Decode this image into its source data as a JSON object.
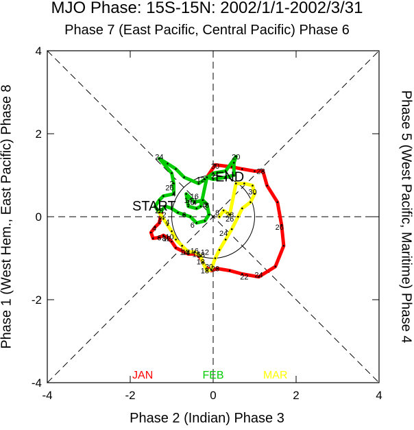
{
  "titles": {
    "main": "MJO Phase: 15S-15N: 2002/1/1-2002/3/31",
    "top": "Phase 7 (East Pacific, Central Pacific) Phase 6",
    "bottom": "Phase 2 (Indian) Phase 3",
    "left": "Phase 1 (West Hem., East Pacific) Phase 8",
    "right": "Phase 5 (West Pacific, Maritime) Phase 4"
  },
  "chart_data": {
    "type": "line",
    "title": "MJO Phase: 15S-15N: 2002/1/1-2002/3/31",
    "xlim": [
      -4,
      4
    ],
    "ylim": [
      -4,
      4
    ],
    "x_ticks": [
      "-4",
      "-2",
      "0",
      "2",
      "4"
    ],
    "y_ticks": [
      "-4",
      "-2",
      "0",
      "2",
      "4"
    ],
    "start_label": "START",
    "end_label": "END",
    "unit_circle_radius": 1,
    "series": [
      {
        "name": "JAN",
        "color": "#ff0000",
        "points": [
          [
            -1.25,
            0.1
          ],
          [
            -1.28,
            -0.05
          ],
          [
            -1.3,
            -0.15
          ],
          [
            -1.4,
            -0.25
          ],
          [
            -1.5,
            -0.38
          ],
          [
            -1.45,
            -0.52
          ],
          [
            -1.3,
            -0.5
          ],
          [
            -1.2,
            -0.45
          ],
          [
            -1.1,
            -0.5
          ],
          [
            -1.0,
            -0.6
          ],
          [
            -0.9,
            -0.75
          ],
          [
            -0.6,
            -0.9
          ],
          [
            -0.4,
            -0.9
          ],
          [
            -0.3,
            -1.0
          ],
          [
            -0.2,
            -1.2
          ],
          [
            -0.05,
            -1.3
          ],
          [
            0.1,
            -1.25
          ],
          [
            0.4,
            -1.3
          ],
          [
            0.7,
            -1.38
          ],
          [
            1.1,
            -1.45
          ],
          [
            1.5,
            -1.2
          ],
          [
            1.7,
            -0.7
          ],
          [
            1.65,
            -0.2
          ],
          [
            1.55,
            0.35
          ],
          [
            1.3,
            0.75
          ],
          [
            1.2,
            1.1
          ],
          [
            1.0,
            1.1
          ],
          [
            0.7,
            1.15
          ],
          [
            0.45,
            1.2
          ],
          [
            0.05,
            1.25
          ],
          [
            -0.15,
            0.95
          ]
        ],
        "labels": [
          {
            "text": "2",
            "x": -1.28,
            "y": -0.05
          },
          {
            "text": "4",
            "x": -1.42,
            "y": -0.27
          },
          {
            "text": "6",
            "x": -1.3,
            "y": -0.5
          },
          {
            "text": "8",
            "x": -1.18,
            "y": -0.52
          },
          {
            "text": "10",
            "x": -1.05,
            "y": -0.48
          },
          {
            "text": "12",
            "x": -1.12,
            "y": -0.52
          },
          {
            "text": "14",
            "x": -0.65,
            "y": -0.85
          },
          {
            "text": "16",
            "x": -0.4,
            "y": -0.9
          },
          {
            "text": "18",
            "x": -0.3,
            "y": -1.08
          },
          {
            "text": "20",
            "x": 0.05,
            "y": -1.25
          },
          {
            "text": "22",
            "x": 0.75,
            "y": -1.45
          },
          {
            "text": "24",
            "x": 1.1,
            "y": -1.4
          },
          {
            "text": "26",
            "x": 1.6,
            "y": -0.25
          },
          {
            "text": "28",
            "x": 1.15,
            "y": 1.1
          },
          {
            "text": "30",
            "x": 0.05,
            "y": 1.22
          }
        ]
      },
      {
        "name": "FEB",
        "color": "#00cc00",
        "points": [
          [
            -0.15,
            0.95
          ],
          [
            0.0,
            0.9
          ],
          [
            0.3,
            0.95
          ],
          [
            0.5,
            1.0
          ],
          [
            0.5,
            1.3
          ],
          [
            0.55,
            1.45
          ],
          [
            0.3,
            1.1
          ],
          [
            0.0,
            1.05
          ],
          [
            -0.2,
            0.9
          ],
          [
            -0.35,
            0.8
          ],
          [
            -0.7,
            0.95
          ],
          [
            -0.9,
            1.15
          ],
          [
            -1.1,
            1.28
          ],
          [
            -1.3,
            1.4
          ],
          [
            -1.0,
            1.05
          ],
          [
            -0.95,
            0.8
          ],
          [
            -0.95,
            0.55
          ],
          [
            -1.2,
            0.5
          ],
          [
            -1.3,
            0.4
          ],
          [
            -1.4,
            0.25
          ],
          [
            -1.3,
            0.1
          ],
          [
            -1.15,
            0.25
          ],
          [
            -1.0,
            0.2
          ],
          [
            -0.85,
            0.1
          ],
          [
            -0.7,
            0.05
          ],
          [
            -0.55,
            0.0
          ],
          [
            -0.4,
            -0.15
          ],
          [
            -0.2,
            -0.1
          ],
          [
            -0.1,
            0.05
          ],
          [
            -0.15,
            0.3
          ],
          [
            -0.25,
            0.4
          ],
          [
            -0.45,
            0.35
          ],
          [
            -0.65,
            0.55
          ],
          [
            -0.6,
            0.25
          ],
          [
            -0.4,
            0.2
          ],
          [
            -0.3,
            0.25
          ],
          [
            -0.15,
            0.95
          ]
        ],
        "labels": [
          {
            "text": "2",
            "x": 0.0,
            "y": 0.98
          },
          {
            "text": "4",
            "x": 0.3,
            "y": 0.95
          },
          {
            "text": "20",
            "x": 0.55,
            "y": 1.45
          },
          {
            "text": "24",
            "x": -1.3,
            "y": 1.45
          },
          {
            "text": "26",
            "x": -1.05,
            "y": 0.7
          },
          {
            "text": "28",
            "x": -1.3,
            "y": 0.15
          },
          {
            "text": "2",
            "x": -1.0,
            "y": 0.8
          },
          {
            "text": "4",
            "x": -0.95,
            "y": 0.55
          },
          {
            "text": "6",
            "x": -0.7,
            "y": 0.05
          },
          {
            "text": "6",
            "x": -0.5,
            "y": -0.2
          },
          {
            "text": "4",
            "x": -0.45,
            "y": 0.35
          },
          {
            "text": "6",
            "x": -0.2,
            "y": 0.3
          },
          {
            "text": "8",
            "x": -0.15,
            "y": 0.28
          },
          {
            "text": "10",
            "x": -0.55,
            "y": 0.35
          },
          {
            "text": "12",
            "x": -0.3,
            "y": 0.9
          },
          {
            "text": "14",
            "x": -0.6,
            "y": 0.4
          },
          {
            "text": "16",
            "x": -0.45,
            "y": 0.5
          }
        ]
      },
      {
        "name": "MAR",
        "color": "#ffff00",
        "points": [
          [
            -1.3,
            0.1
          ],
          [
            -1.2,
            -0.05
          ],
          [
            -1.1,
            -0.2
          ],
          [
            -1.0,
            -0.35
          ],
          [
            -0.9,
            -0.55
          ],
          [
            -0.75,
            -0.7
          ],
          [
            -0.6,
            -0.85
          ],
          [
            -0.45,
            -0.85
          ],
          [
            -0.3,
            -0.95
          ],
          [
            -0.25,
            -1.1
          ],
          [
            -0.15,
            -1.3
          ],
          [
            -0.05,
            -1.28
          ],
          [
            0.05,
            -1.0
          ],
          [
            0.15,
            -0.8
          ],
          [
            0.3,
            -0.55
          ],
          [
            0.45,
            -0.3
          ],
          [
            0.6,
            0.0
          ],
          [
            0.7,
            0.2
          ],
          [
            0.9,
            0.35
          ],
          [
            1.0,
            0.55
          ],
          [
            0.95,
            0.75
          ],
          [
            0.75,
            0.8
          ],
          [
            0.55,
            0.8
          ],
          [
            0.4,
            0.05
          ],
          [
            0.25,
            0.15
          ],
          [
            0.15,
            0.0
          ]
        ],
        "labels": [
          {
            "text": "2",
            "x": -1.18,
            "y": 0.05
          },
          {
            "text": "4",
            "x": -1.1,
            "y": -0.12
          },
          {
            "text": "14",
            "x": -0.7,
            "y": -0.85
          },
          {
            "text": "16",
            "x": -0.45,
            "y": -0.82
          },
          {
            "text": "18",
            "x": -0.3,
            "y": -0.92
          },
          {
            "text": "12",
            "x": -0.2,
            "y": -0.85
          },
          {
            "text": "20",
            "x": -0.1,
            "y": -1.2
          },
          {
            "text": "18",
            "x": -0.2,
            "y": -1.3
          },
          {
            "text": "24",
            "x": 0.25,
            "y": -0.4
          },
          {
            "text": "26",
            "x": 0.4,
            "y": -0.05
          },
          {
            "text": "28",
            "x": 0.4,
            "y": 0.05
          },
          {
            "text": "30",
            "x": 0.95,
            "y": 0.6
          },
          {
            "text": "8",
            "x": 0.1,
            "y": 0.1
          }
        ]
      }
    ]
  }
}
